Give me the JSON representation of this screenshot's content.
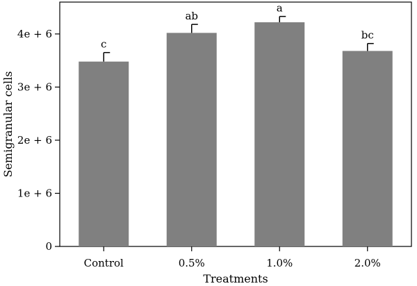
{
  "chart_data": {
    "type": "bar",
    "categories": [
      "Control",
      "0.5%",
      "1.0%",
      "2.0%"
    ],
    "values": [
      3480000,
      4020000,
      4220000,
      3680000
    ],
    "errors": [
      170000,
      160000,
      110000,
      140000
    ],
    "significance": [
      "c",
      "ab",
      "a",
      "bc"
    ],
    "xlabel": "Treatments",
    "ylabel": "Semigranular cells",
    "ylim": [
      0,
      4600000
    ],
    "yticks": [
      0,
      1000000,
      2000000,
      3000000,
      4000000
    ],
    "ytick_labels": [
      "0",
      "1e + 6",
      "2e + 6",
      "3e + 6",
      "4e + 6"
    ],
    "grid": false,
    "bar_color": "#808080"
  }
}
